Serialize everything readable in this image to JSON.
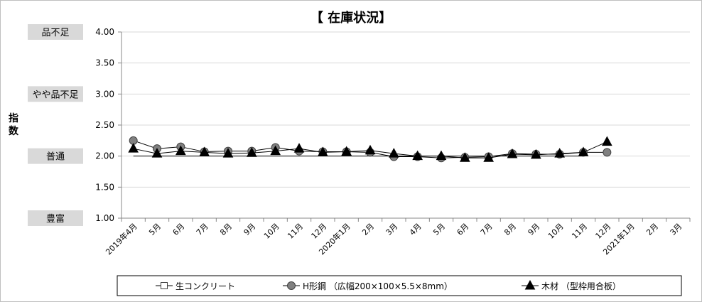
{
  "chart_data": {
    "type": "line",
    "title": "【 在庫状況】",
    "ylabel": "指数",
    "ylim": [
      1.0,
      4.0
    ],
    "y_ticks": [
      "1.00",
      "1.50",
      "2.00",
      "2.50",
      "3.00",
      "3.50",
      "4.00"
    ],
    "y_categories": [
      {
        "label": "品不足",
        "value": 4.0
      },
      {
        "label": "やや品不足",
        "value": 3.0
      },
      {
        "label": "普通",
        "value": 2.0
      },
      {
        "label": "豊富",
        "value": 1.0
      }
    ],
    "categories": [
      "2019年4月",
      "5月",
      "6月",
      "7月",
      "8月",
      "9月",
      "10月",
      "11月",
      "12月",
      "2020年1月",
      "2月",
      "3月",
      "4月",
      "5月",
      "6月",
      "7月",
      "8月",
      "9月",
      "10月",
      "11月",
      "12月",
      "2021年1月",
      "2月",
      "3月"
    ],
    "grid": true,
    "legend_position": "bottom",
    "series": [
      {
        "name": "生コンクリート",
        "marker": "square",
        "color": "#000000",
        "values": [
          2.0,
          2.0,
          2.0,
          2.0,
          2.0,
          2.0,
          2.0,
          2.0,
          2.0,
          2.0,
          2.0,
          2.0,
          2.0,
          2.0,
          2.0,
          2.0,
          2.0,
          2.0,
          2.0,
          2.0,
          null,
          null,
          null,
          null
        ]
      },
      {
        "name": "H形鋼 （広幅200×100×5.5×8mm）",
        "marker": "circle",
        "color": "#808080",
        "values": [
          2.25,
          2.12,
          2.15,
          2.07,
          2.08,
          2.08,
          2.14,
          2.08,
          2.07,
          2.07,
          2.06,
          1.99,
          1.99,
          1.97,
          1.98,
          1.99,
          2.04,
          2.03,
          2.03,
          2.06,
          2.06,
          null,
          null,
          null
        ]
      },
      {
        "name": "木材 （型枠用合板）",
        "marker": "triangle",
        "color": "#000000",
        "values": [
          2.12,
          2.04,
          2.08,
          2.06,
          2.04,
          2.05,
          2.08,
          2.12,
          2.06,
          2.07,
          2.09,
          2.04,
          2.0,
          2.0,
          1.97,
          1.97,
          2.03,
          2.02,
          2.04,
          2.06,
          2.23,
          null,
          null,
          null
        ]
      }
    ]
  }
}
